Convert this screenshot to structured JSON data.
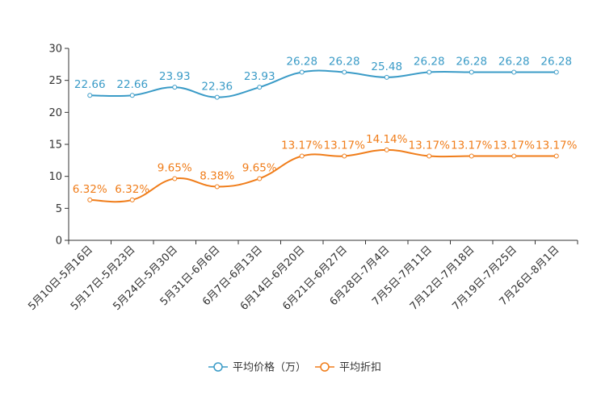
{
  "chart_data": {
    "type": "line",
    "title": "",
    "xlabel": "",
    "ylabel": "",
    "ylim": [
      0,
      30
    ],
    "yticks": [
      0,
      5,
      10,
      15,
      20,
      25,
      30
    ],
    "grid": false,
    "legend_position": "bottom-center",
    "categories": [
      "5月10日-5月16日",
      "5月17日-5月23日",
      "5月24日-5月30日",
      "5月31日-6月6日",
      "6月7日-6月13日",
      "6月14日-6月20日",
      "6月21日-6月27日",
      "6月28日-7月4日",
      "7月5日-7月11日",
      "7月12日-7月18日",
      "7月19日-7月25日",
      "7月26日-8月1日"
    ],
    "series": [
      {
        "name": "平均价格（万）",
        "color": "#3a9bc7",
        "values": [
          22.66,
          22.66,
          23.93,
          22.36,
          23.93,
          26.28,
          26.28,
          25.48,
          26.28,
          26.28,
          26.28,
          26.28
        ],
        "labels": [
          "22.66",
          "22.66",
          "23.93",
          "22.36",
          "23.93",
          "26.28",
          "26.28",
          "25.48",
          "26.28",
          "26.28",
          "26.28",
          "26.28"
        ]
      },
      {
        "name": "平均折扣",
        "color": "#f07d1a",
        "values": [
          6.32,
          6.32,
          9.65,
          8.38,
          9.65,
          13.17,
          13.17,
          14.14,
          13.17,
          13.17,
          13.17,
          13.17
        ],
        "labels": [
          "6.32%",
          "6.32%",
          "9.65%",
          "8.38%",
          "9.65%",
          "13.17%",
          "13.17%",
          "14.14%",
          "13.17%",
          "13.17%",
          "13.17%",
          "13.17%"
        ]
      }
    ]
  }
}
